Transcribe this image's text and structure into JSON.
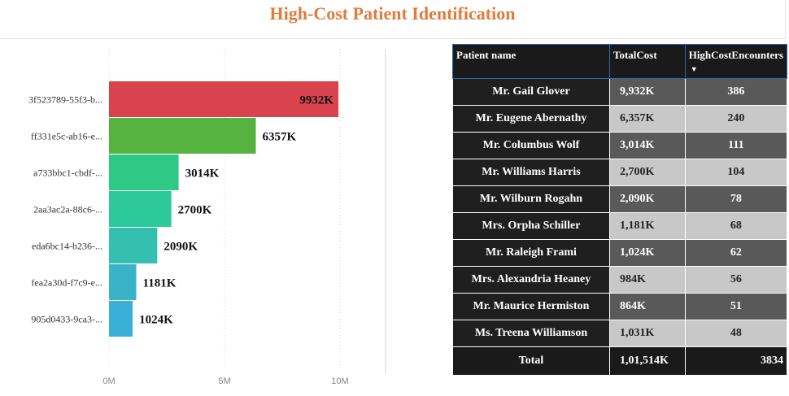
{
  "header": {
    "title": "High-Cost Patient Identification"
  },
  "chart_data": {
    "type": "bar",
    "orientation": "horizontal",
    "categories": [
      "3f523789-55f3-b...",
      "ff331e5c-ab16-e...",
      "a733bbc1-cbdf-...",
      "2aa3ac2a-88c6-...",
      "eda6bc14-b236-...",
      "fea2a30d-f7c9-e...",
      "905d0433-9ca3-..."
    ],
    "values": [
      9932,
      6357,
      3014,
      2700,
      2090,
      1181,
      1024
    ],
    "data_labels": [
      "9932K",
      "6357K",
      "3014K",
      "2700K",
      "2090K",
      "1181K",
      "1024K"
    ],
    "colors": [
      "#d9434e",
      "#57b340",
      "#2ec985",
      "#2ec99a",
      "#35bfae",
      "#3ab3c8",
      "#3ab0d8"
    ],
    "xticks": [
      "0M",
      "5M",
      "10M"
    ],
    "xlim": [
      0,
      10000
    ],
    "grid": "vertical-dotted",
    "legend": "none"
  },
  "table": {
    "headers": [
      "Patient name",
      "TotalCost",
      "HighCostEncounters"
    ],
    "sort_indicator": "▼",
    "rows": [
      [
        "Mr. Gail Glover",
        "9,932K",
        "386"
      ],
      [
        "Mr. Eugene Abernathy",
        "6,357K",
        "240"
      ],
      [
        "Mr. Columbus Wolf",
        "3,014K",
        "111"
      ],
      [
        "Mr. Williams Harris",
        "2,700K",
        "104"
      ],
      [
        "Mr. Wilburn Rogahn",
        "2,090K",
        "78"
      ],
      [
        "Mrs. Orpha Schiller",
        "1,181K",
        "68"
      ],
      [
        "Mr. Raleigh Frami",
        "1,024K",
        "62"
      ],
      [
        "Mrs. Alexandria Heaney",
        "984K",
        "56"
      ],
      [
        "Mr. Maurice Hermiston",
        "864K",
        "51"
      ],
      [
        "Ms. Treena Williamson",
        "1,031K",
        "48"
      ]
    ],
    "total": [
      "Total",
      "1,01,514K",
      "3834"
    ]
  }
}
